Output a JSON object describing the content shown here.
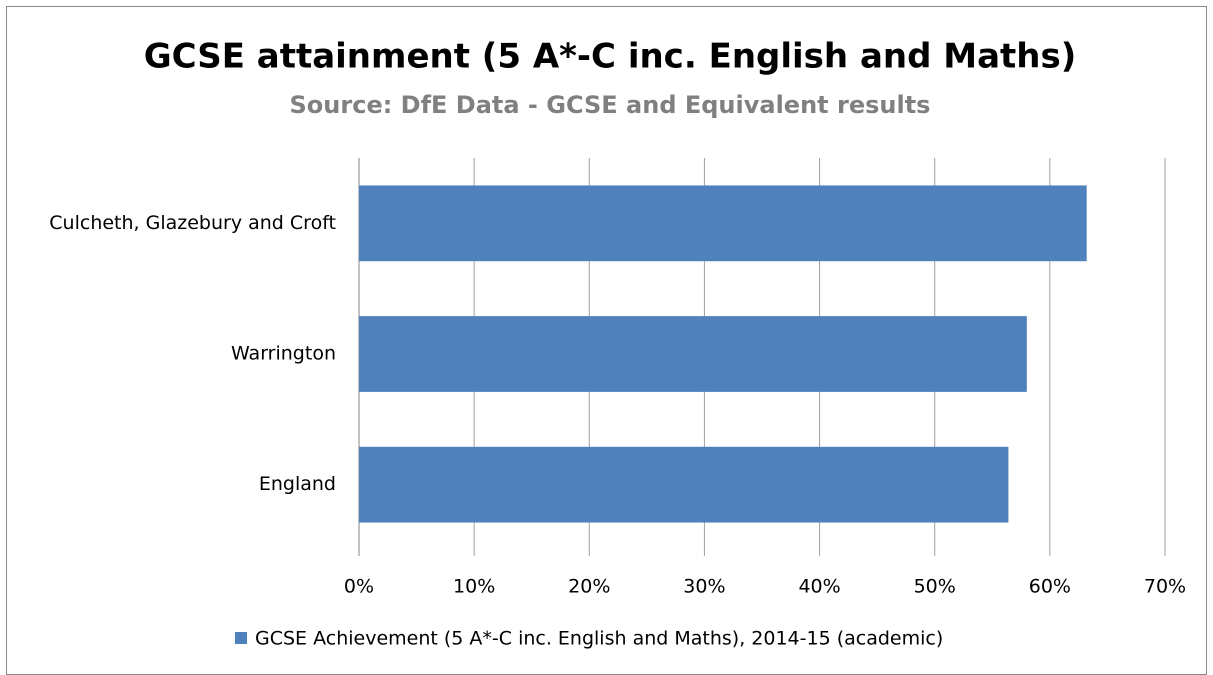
{
  "chart_data": {
    "type": "bar",
    "orientation": "horizontal",
    "title": "GCSE attainment (5 A*-C inc. English and Maths)",
    "subtitle": "Source: DfE Data - GCSE and Equivalent results",
    "categories": [
      "Culcheth, Glazebury and Croft",
      "Warrington",
      "England"
    ],
    "series": [
      {
        "name": "GCSE Achievement (5 A*-C inc. English and Maths), 2014-15 (academic)",
        "color": "#4f81bd",
        "values": [
          63.2,
          58.0,
          56.4
        ]
      }
    ],
    "xlim": [
      0,
      70
    ],
    "xticks": [
      {
        "value": 0,
        "label": "0%"
      },
      {
        "value": 10,
        "label": "10%"
      },
      {
        "value": 20,
        "label": "20%"
      },
      {
        "value": 30,
        "label": "30%"
      },
      {
        "value": 40,
        "label": "40%"
      },
      {
        "value": 50,
        "label": "50%"
      },
      {
        "value": 60,
        "label": "60%"
      },
      {
        "value": 70,
        "label": "70%"
      }
    ],
    "grid": true,
    "legend": "bottom"
  }
}
